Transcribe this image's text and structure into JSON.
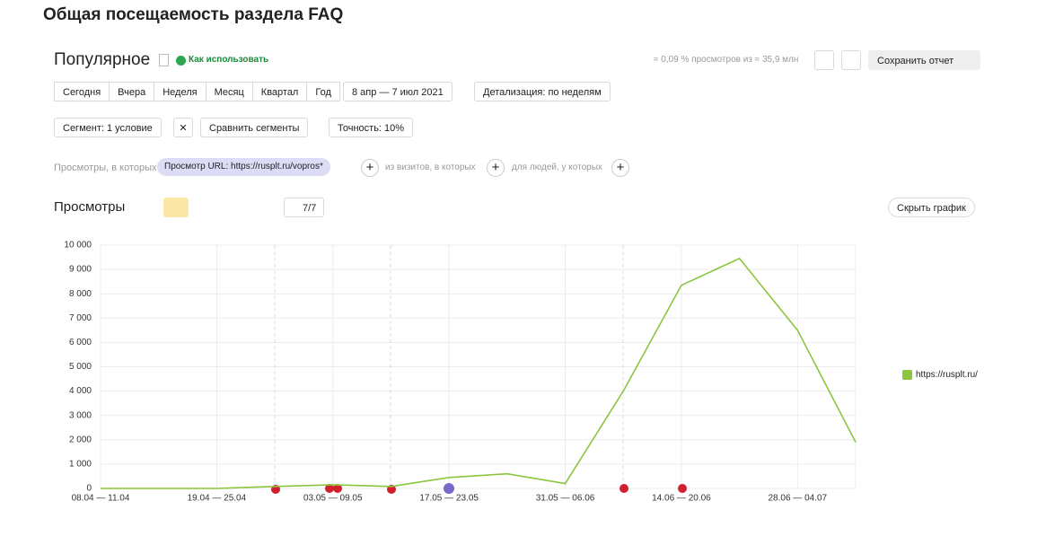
{
  "header": {
    "title": "Общая посещаемость раздела FAQ"
  },
  "report": {
    "title": "Популярное",
    "help_link": "Как использовать",
    "stats": "≈ 0,09 % просмотров из ≈ 35,9 млн",
    "save_button": "Сохранить отчет"
  },
  "toolbar": {
    "periods": [
      "Сегодня",
      "Вчера",
      "Неделя",
      "Месяц",
      "Квартал",
      "Год"
    ],
    "date_range": "8 апр — 7 июл 2021",
    "detail": "Детализация: по неделям",
    "segment": "Сегмент: 1 условие",
    "compare": "Сравнить сегменты",
    "accuracy": "Точность: 10%"
  },
  "filter": {
    "prefix": "Просмотры, в которых",
    "chip": "Просмотр URL: https://rusplt.ru/vopros*",
    "visits": "из визитов, в которых",
    "people": "для людей, у которых"
  },
  "chart_section": {
    "title": "Просмотры",
    "series_count": "7/7",
    "hide_button": "Скрыть график"
  },
  "chart_data": {
    "type": "line",
    "categories": [
      "08.04 — 11.04",
      null,
      "19.04 — 25.04",
      null,
      "03.05 — 09.05",
      null,
      "17.05 — 23.05",
      null,
      "31.05 — 06.06",
      null,
      "14.06 — 20.06",
      null,
      "28.06 — 04.07",
      null
    ],
    "series": [
      {
        "name": "https://rusplt.ru/",
        "color": "#8cc63f",
        "values": [
          0,
          0,
          0,
          80,
          150,
          80,
          450,
          600,
          200,
          4000,
          8350,
          9450,
          6500,
          1900
        ]
      }
    ],
    "ylim": [
      0,
      10000
    ],
    "yticks": [
      0,
      {
        "value": 1000,
        "label": "1 000"
      },
      {
        "value": 2000,
        "label": "2 000"
      },
      {
        "value": 3000,
        "label": "3 000"
      },
      {
        "value": 4000,
        "label": "4 000"
      },
      {
        "value": 5000,
        "label": "5 000"
      },
      {
        "value": 6000,
        "label": "6 000"
      },
      {
        "value": 7000,
        "label": "7 000"
      },
      {
        "value": 8000,
        "label": "8 000"
      },
      {
        "value": 9000,
        "label": "9 000"
      },
      {
        "value": 10000,
        "label": "10 000"
      }
    ],
    "grid": true,
    "legend": "right"
  }
}
